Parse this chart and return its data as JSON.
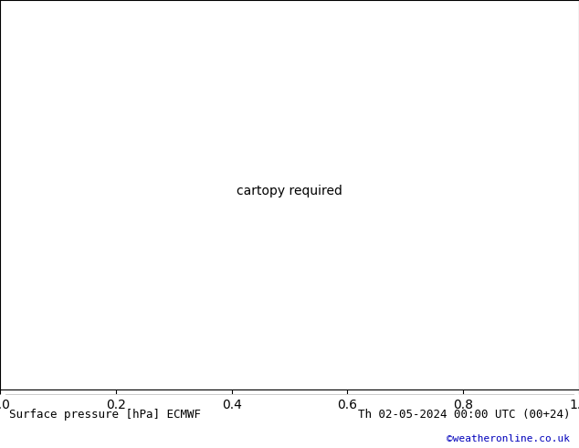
{
  "title_left": "Surface pressure [hPa] ECMWF",
  "title_right": "Th 02-05-2024 00:00 UTC (00+24)",
  "credit": "©weatheronline.co.uk",
  "credit_color": "#0000bb",
  "background_color": "#ffffff",
  "land_color": "#aad4a0",
  "highalt_color": "#c0c0c0",
  "ocean_color": "#ffffff",
  "footer_fontsize": 9,
  "credit_fontsize": 8,
  "contour_interval": 4,
  "pressure_base": 1013,
  "pressure_min": 956,
  "pressure_max": 1048
}
